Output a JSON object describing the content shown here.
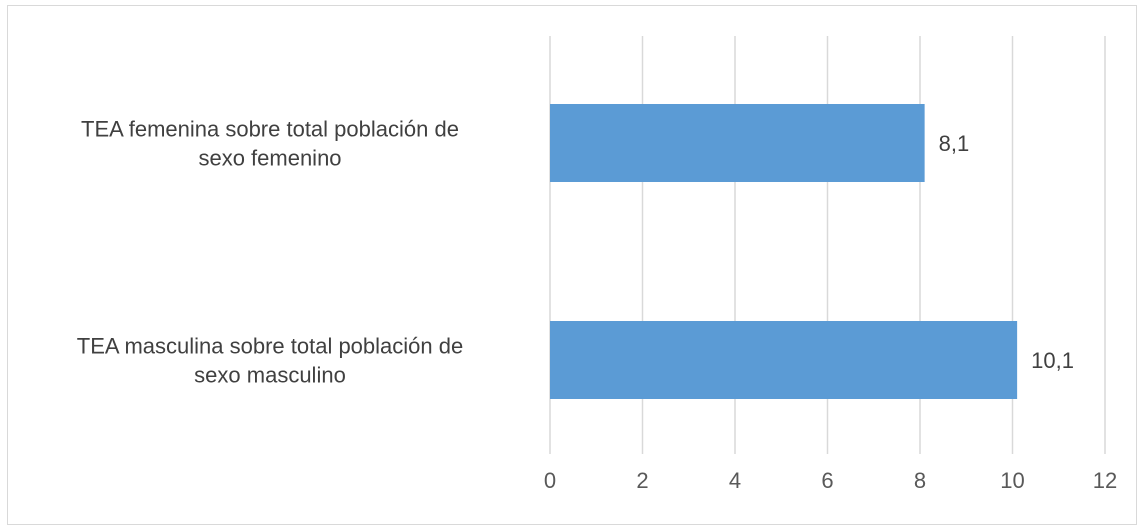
{
  "chart_data": {
    "type": "bar",
    "orientation": "horizontal",
    "categories": [
      [
        "TEA femenina sobre  total población de",
        "sexo femenino"
      ],
      [
        "TEA masculina sobre  total población de",
        "sexo masculino"
      ]
    ],
    "values": [
      8.1,
      10.1
    ],
    "data_labels": [
      "8,1",
      "10,1"
    ],
    "xlim": [
      0,
      12
    ],
    "x_ticks": [
      0,
      2,
      4,
      6,
      8,
      10,
      12
    ],
    "x_tick_labels": [
      "0",
      "2",
      "4",
      "6",
      "8",
      "10",
      "12"
    ],
    "grid": true,
    "legend": "none",
    "bar_color": "#5b9bd5"
  }
}
